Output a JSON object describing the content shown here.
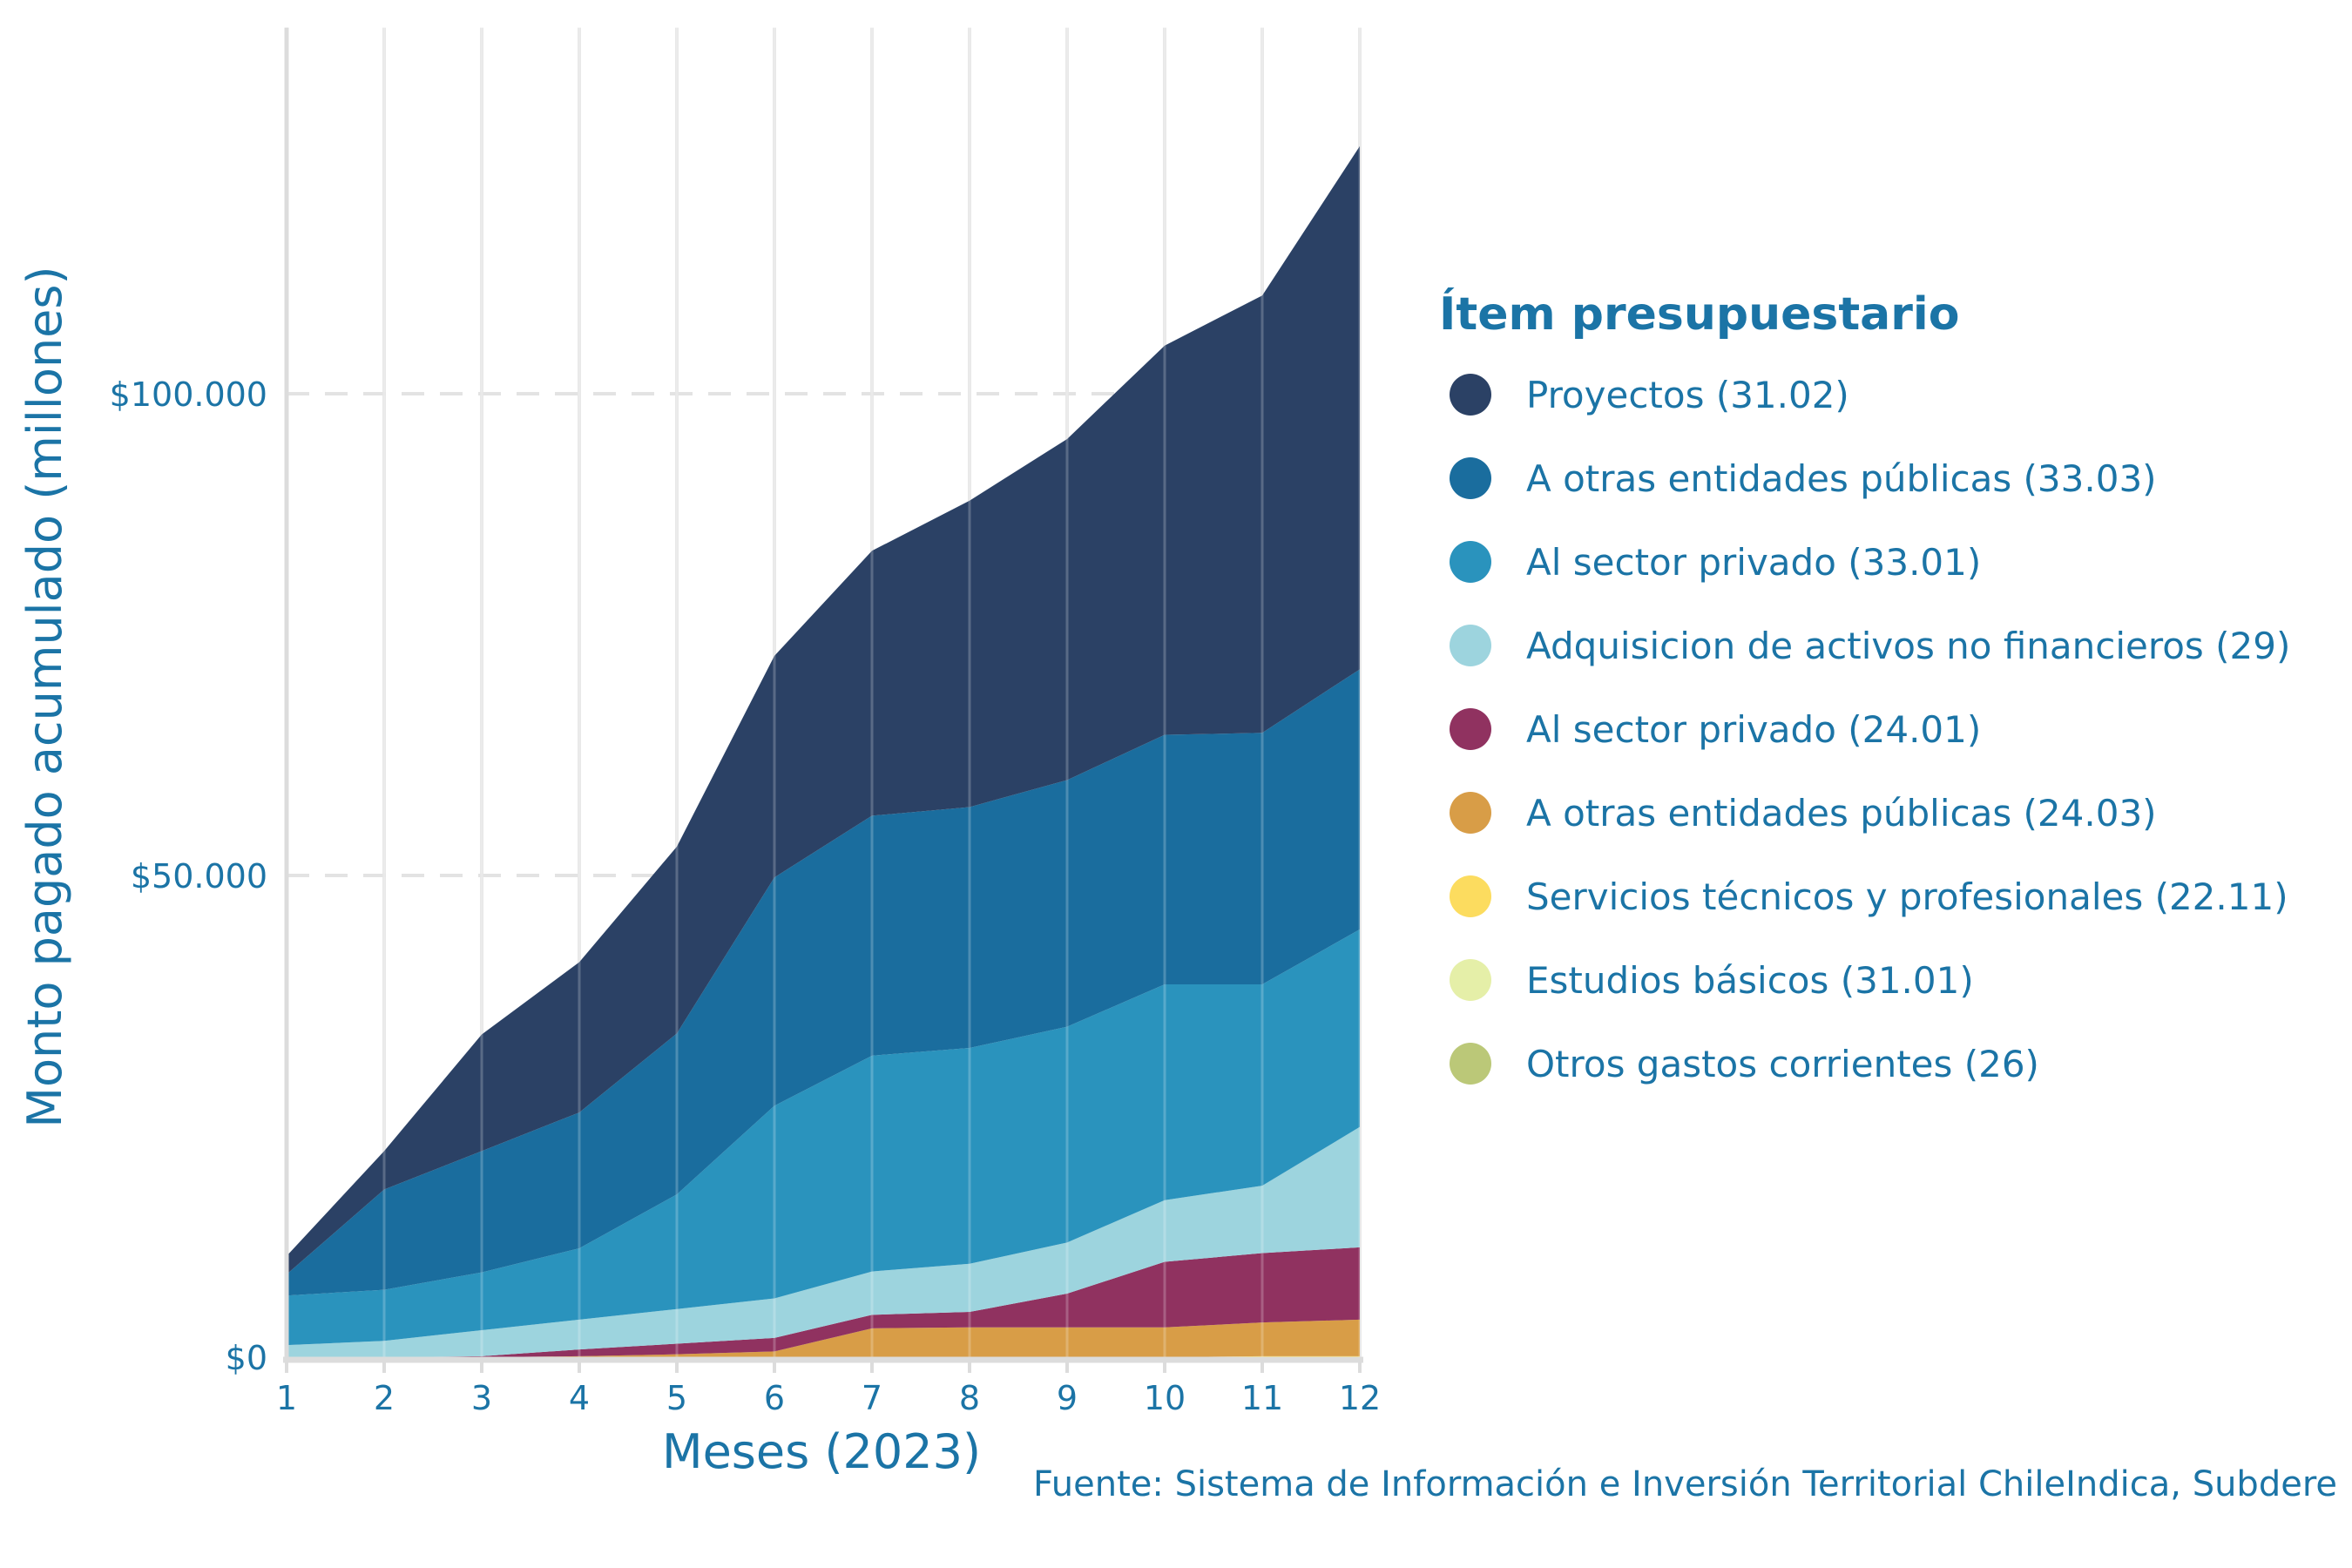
{
  "chart_data": {
    "type": "area",
    "stacked": true,
    "title": "",
    "xlabel": "Meses (2023)",
    "ylabel": "Monto pagado acumulado (millones)",
    "x": [
      1,
      2,
      3,
      4,
      5,
      6,
      7,
      8,
      9,
      10,
      11,
      12
    ],
    "x_tick_labels": [
      "1",
      "2",
      "3",
      "4",
      "5",
      "6",
      "7",
      "8",
      "9",
      "10",
      "11",
      "12"
    ],
    "y_ticks": [
      0,
      50000,
      100000
    ],
    "y_tick_labels": [
      "$0",
      "$50.000",
      "$100.000"
    ],
    "xlim": [
      1,
      12
    ],
    "ylim": [
      0,
      138000
    ],
    "grid": true,
    "legend_title": "Ítem presupuestario",
    "legend_position": "right",
    "caption": "Fuente: Sistema de Información e Inversión Territorial ChileIndica, Subdere",
    "series": [
      {
        "name": "Proyectos (31.02)",
        "color": "#2b4165",
        "values": [
          1900,
          4000,
          12100,
          15600,
          19400,
          23000,
          27500,
          31800,
          35400,
          40400,
          45400,
          54300
        ]
      },
      {
        "name": "A otras entidades públicas (33.03)",
        "color": "#1a6d9e",
        "values": [
          2200,
          10400,
          12600,
          14100,
          16700,
          23700,
          24900,
          25000,
          25600,
          25900,
          26100,
          27000
        ]
      },
      {
        "name": "Al sector privado (33.01)",
        "color": "#2a93bd",
        "values": [
          5150,
          5300,
          6000,
          7400,
          11900,
          20000,
          22400,
          22400,
          22400,
          22400,
          20900,
          20500
        ]
      },
      {
        "name": "Adquisicion de activos no financieros (29)",
        "color": "#9dd4de",
        "values": [
          1250,
          1700,
          2700,
          3100,
          3600,
          4100,
          4500,
          5000,
          5300,
          6400,
          7000,
          12500
        ]
      },
      {
        "name": "Al sector privado (24.01)",
        "color": "#903260",
        "values": [
          0,
          0,
          100,
          700,
          1100,
          1400,
          1400,
          1600,
          3500,
          6800,
          7200,
          7500
        ]
      },
      {
        "name": "A otras entidades públicas (24.03)",
        "color": "#d89d47",
        "values": [
          0,
          0,
          0,
          100,
          300,
          600,
          3000,
          3100,
          3100,
          3100,
          3500,
          3800
        ]
      },
      {
        "name": "Servicios técnicos y profesionales (22.11)",
        "color": "#fcdc5f",
        "values": [
          0,
          0,
          0,
          0,
          0,
          0,
          0,
          0,
          0,
          0,
          100,
          100
        ]
      },
      {
        "name": "Estudios básicos (31.01)",
        "color": "#e5efa8",
        "values": [
          0,
          0,
          0,
          0,
          0,
          0,
          0,
          0,
          0,
          0,
          0,
          0
        ]
      },
      {
        "name": "Otros gastos corrientes (26)",
        "color": "#bbc878",
        "values": [
          0,
          0,
          0,
          0,
          0,
          0,
          0,
          0,
          0,
          0,
          0,
          0
        ]
      }
    ]
  }
}
